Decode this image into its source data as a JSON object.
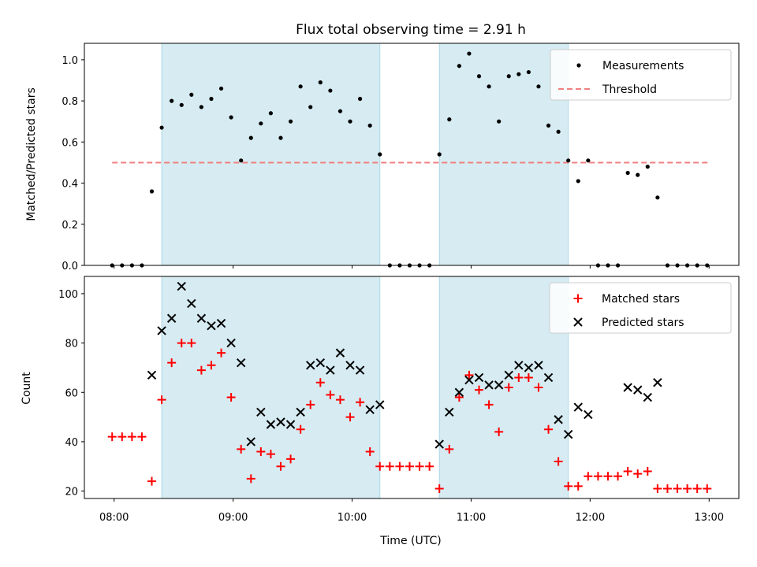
{
  "colors": {
    "shade": "#add8e6",
    "threshold": "#f08080",
    "matched": "#ff0000",
    "predicted": "#000000",
    "measurement": "#000000"
  },
  "chart_data": [
    {
      "type": "scatter",
      "title": "Flux total observing time = 2.91 h",
      "ylabel": "Matched/Predicted stars",
      "xlabel": "",
      "xlim": [
        "07:45",
        "13:15"
      ],
      "ylim": [
        0,
        1.08
      ],
      "yticks": [
        "0.0",
        "0.2",
        "0.4",
        "0.6",
        "0.8",
        "1.0"
      ],
      "shaded_intervals": [
        [
          "08:24",
          "10:14"
        ],
        [
          "10:44",
          "11:49"
        ]
      ],
      "threshold": 0.5,
      "threshold_x": [
        "07:59",
        "13:00"
      ],
      "legend": {
        "placement": "upper right",
        "entries": [
          "Measurements",
          "Threshold"
        ]
      },
      "series": [
        {
          "name": "Measurements",
          "marker": "dot",
          "points": [
            [
              "07:59",
              0
            ],
            [
              "08:04",
              0
            ],
            [
              "08:09",
              0
            ],
            [
              "08:14",
              0
            ],
            [
              "08:19",
              0.36
            ],
            [
              "08:24",
              0.67
            ],
            [
              "08:29",
              0.8
            ],
            [
              "08:34",
              0.78
            ],
            [
              "08:39",
              0.83
            ],
            [
              "08:44",
              0.77
            ],
            [
              "08:49",
              0.81
            ],
            [
              "08:54",
              0.86
            ],
            [
              "08:59",
              0.72
            ],
            [
              "09:04",
              0.51
            ],
            [
              "09:09",
              0.62
            ],
            [
              "09:14",
              0.69
            ],
            [
              "09:19",
              0.74
            ],
            [
              "09:24",
              0.62
            ],
            [
              "09:29",
              0.7
            ],
            [
              "09:34",
              0.87
            ],
            [
              "09:39",
              0.77
            ],
            [
              "09:44",
              0.89
            ],
            [
              "09:49",
              0.85
            ],
            [
              "09:54",
              0.75
            ],
            [
              "09:59",
              0.7
            ],
            [
              "10:04",
              0.81
            ],
            [
              "10:09",
              0.68
            ],
            [
              "10:14",
              0.54
            ],
            [
              "10:19",
              0
            ],
            [
              "10:24",
              0
            ],
            [
              "10:29",
              0
            ],
            [
              "10:34",
              0
            ],
            [
              "10:39",
              0
            ],
            [
              "10:44",
              0.54
            ],
            [
              "10:49",
              0.71
            ],
            [
              "10:54",
              0.97
            ],
            [
              "10:59",
              1.03
            ],
            [
              "11:04",
              0.92
            ],
            [
              "11:09",
              0.87
            ],
            [
              "11:14",
              0.7
            ],
            [
              "11:19",
              0.92
            ],
            [
              "11:24",
              0.93
            ],
            [
              "11:29",
              0.94
            ],
            [
              "11:34",
              0.87
            ],
            [
              "11:39",
              0.68
            ],
            [
              "11:44",
              0.65
            ],
            [
              "11:49",
              0.51
            ],
            [
              "11:54",
              0.41
            ],
            [
              "11:59",
              0.51
            ],
            [
              "12:04",
              0
            ],
            [
              "12:09",
              0
            ],
            [
              "12:14",
              0
            ],
            [
              "12:19",
              0.45
            ],
            [
              "12:24",
              0.44
            ],
            [
              "12:29",
              0.48
            ],
            [
              "12:34",
              0.33
            ],
            [
              "12:39",
              0
            ],
            [
              "12:44",
              0
            ],
            [
              "12:49",
              0
            ],
            [
              "12:54",
              0
            ],
            [
              "12:59",
              0
            ]
          ]
        },
        {
          "name": "Threshold",
          "style": "dashed"
        }
      ]
    },
    {
      "type": "scatter",
      "title": "",
      "ylabel": "Count",
      "xlabel": "Time (UTC)",
      "xlim": [
        "07:45",
        "13:15"
      ],
      "ylim": [
        17,
        107
      ],
      "xticks": [
        "08:00",
        "09:00",
        "10:00",
        "11:00",
        "12:00",
        "13:00"
      ],
      "yticks": [
        "20",
        "40",
        "60",
        "80",
        "100"
      ],
      "shaded_intervals": [
        [
          "08:24",
          "10:14"
        ],
        [
          "10:44",
          "11:49"
        ]
      ],
      "legend": {
        "placement": "upper right",
        "entries": [
          "Matched stars",
          "Predicted stars"
        ]
      },
      "series": [
        {
          "name": "Matched stars",
          "marker": "plus",
          "points": [
            [
              "07:59",
              42
            ],
            [
              "08:04",
              42
            ],
            [
              "08:09",
              42
            ],
            [
              "08:14",
              42
            ],
            [
              "08:19",
              24
            ],
            [
              "08:24",
              57
            ],
            [
              "08:29",
              72
            ],
            [
              "08:34",
              80
            ],
            [
              "08:39",
              80
            ],
            [
              "08:44",
              69
            ],
            [
              "08:49",
              71
            ],
            [
              "08:54",
              76
            ],
            [
              "08:59",
              58
            ],
            [
              "09:04",
              37
            ],
            [
              "09:09",
              25
            ],
            [
              "09:14",
              36
            ],
            [
              "09:19",
              35
            ],
            [
              "09:24",
              30
            ],
            [
              "09:29",
              33
            ],
            [
              "09:34",
              45
            ],
            [
              "09:39",
              55
            ],
            [
              "09:44",
              64
            ],
            [
              "09:49",
              59
            ],
            [
              "09:54",
              57
            ],
            [
              "09:59",
              50
            ],
            [
              "10:04",
              56
            ],
            [
              "10:09",
              36
            ],
            [
              "10:14",
              30
            ],
            [
              "10:19",
              30
            ],
            [
              "10:24",
              30
            ],
            [
              "10:29",
              30
            ],
            [
              "10:34",
              30
            ],
            [
              "10:39",
              30
            ],
            [
              "10:44",
              21
            ],
            [
              "10:49",
              37
            ],
            [
              "10:54",
              58
            ],
            [
              "10:59",
              67
            ],
            [
              "11:04",
              61
            ],
            [
              "11:09",
              55
            ],
            [
              "11:14",
              44
            ],
            [
              "11:19",
              62
            ],
            [
              "11:24",
              66
            ],
            [
              "11:29",
              66
            ],
            [
              "11:34",
              62
            ],
            [
              "11:39",
              45
            ],
            [
              "11:44",
              32
            ],
            [
              "11:49",
              22
            ],
            [
              "11:54",
              22
            ],
            [
              "11:59",
              26
            ],
            [
              "12:04",
              26
            ],
            [
              "12:09",
              26
            ],
            [
              "12:14",
              26
            ],
            [
              "12:19",
              28
            ],
            [
              "12:24",
              27
            ],
            [
              "12:29",
              28
            ],
            [
              "12:34",
              21
            ],
            [
              "12:39",
              21
            ],
            [
              "12:44",
              21
            ],
            [
              "12:49",
              21
            ],
            [
              "12:54",
              21
            ],
            [
              "12:59",
              21
            ]
          ]
        },
        {
          "name": "Predicted stars",
          "marker": "x",
          "points": [
            [
              "08:19",
              67
            ],
            [
              "08:24",
              85
            ],
            [
              "08:29",
              90
            ],
            [
              "08:34",
              103
            ],
            [
              "08:39",
              96
            ],
            [
              "08:44",
              90
            ],
            [
              "08:49",
              87
            ],
            [
              "08:54",
              88
            ],
            [
              "08:59",
              80
            ],
            [
              "09:04",
              72
            ],
            [
              "09:09",
              40
            ],
            [
              "09:14",
              52
            ],
            [
              "09:19",
              47
            ],
            [
              "09:24",
              48
            ],
            [
              "09:29",
              47
            ],
            [
              "09:34",
              52
            ],
            [
              "09:39",
              71
            ],
            [
              "09:44",
              72
            ],
            [
              "09:49",
              69
            ],
            [
              "09:54",
              76
            ],
            [
              "09:59",
              71
            ],
            [
              "10:04",
              69
            ],
            [
              "10:09",
              53
            ],
            [
              "10:14",
              55
            ],
            [
              "10:44",
              39
            ],
            [
              "10:49",
              52
            ],
            [
              "10:54",
              60
            ],
            [
              "10:59",
              65
            ],
            [
              "11:04",
              66
            ],
            [
              "11:09",
              63
            ],
            [
              "11:14",
              63
            ],
            [
              "11:19",
              67
            ],
            [
              "11:24",
              71
            ],
            [
              "11:29",
              70
            ],
            [
              "11:34",
              71
            ],
            [
              "11:39",
              66
            ],
            [
              "11:44",
              49
            ],
            [
              "11:49",
              43
            ],
            [
              "11:54",
              54
            ],
            [
              "11:59",
              51
            ],
            [
              "12:19",
              62
            ],
            [
              "12:24",
              61
            ],
            [
              "12:29",
              58
            ],
            [
              "12:34",
              64
            ]
          ]
        }
      ]
    }
  ]
}
